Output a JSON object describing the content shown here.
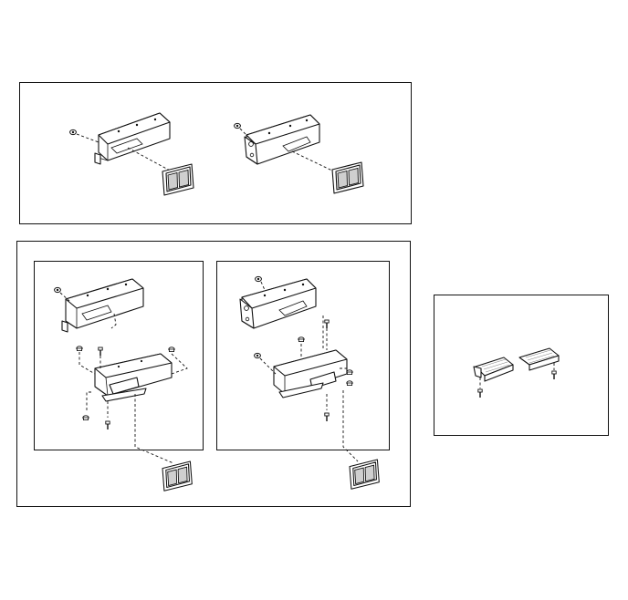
{
  "figure": {
    "panels": [
      {
        "name": "top-assembly-panel",
        "views": [
          "left-lamp-bracket-view",
          "right-lamp-bracket-view"
        ]
      },
      {
        "name": "middle-assembly-panel",
        "views": [
          "left-bracket-exploded-view",
          "right-bracket-exploded-view"
        ]
      },
      {
        "name": "side-lamp-panel",
        "views": [
          "side-lamp-pair-view"
        ]
      }
    ]
  },
  "colors": {
    "line": "#111111",
    "lens_fill": "#cfcfcf",
    "background": "#ffffff"
  },
  "icons": {
    "bolt": "bolt-icon",
    "nut": "nut-icon",
    "lamp": "lamp-lens-icon",
    "bracket": "bracket-housing-icon"
  }
}
